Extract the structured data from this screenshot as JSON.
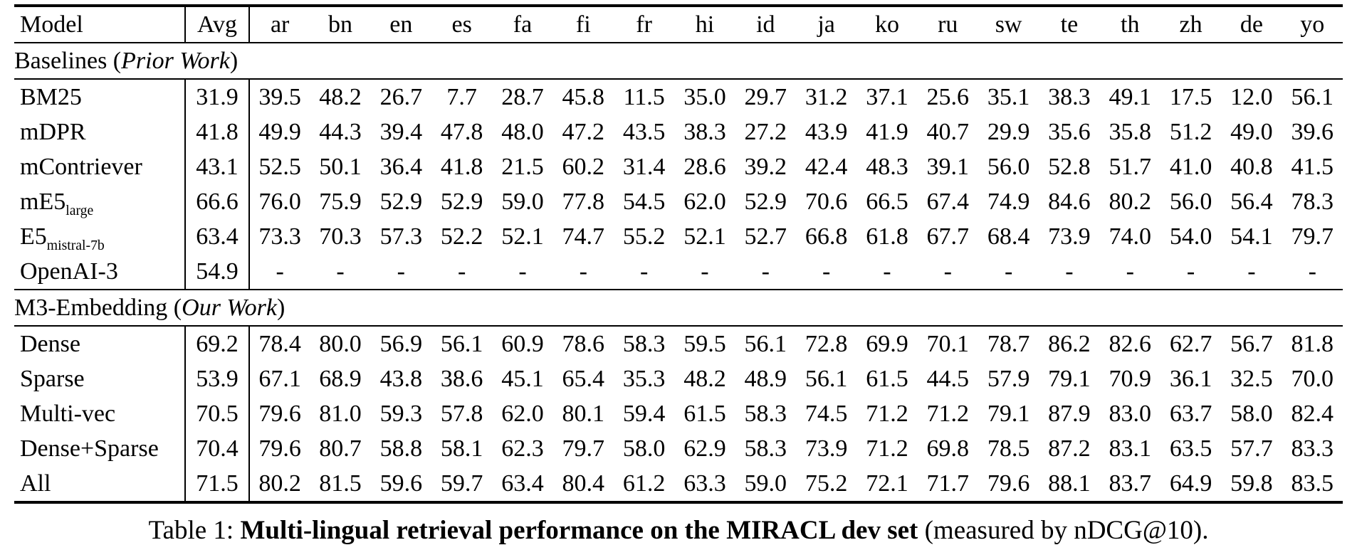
{
  "page": {
    "background_color": "#ffffff",
    "text_color": "#000000"
  },
  "table": {
    "columns": [
      "Model",
      "Avg",
      "ar",
      "bn",
      "en",
      "es",
      "fa",
      "fi",
      "fr",
      "hi",
      "id",
      "ja",
      "ko",
      "ru",
      "sw",
      "te",
      "th",
      "zh",
      "de",
      "yo"
    ],
    "sections": [
      {
        "label_prefix": "Baselines (",
        "label_italic": "Prior Work",
        "label_suffix": ")",
        "rows": [
          {
            "model": "BM25",
            "model_sub": "",
            "avg": "31.9",
            "bold": false,
            "values": [
              "39.5",
              "48.2",
              "26.7",
              "7.7",
              "28.7",
              "45.8",
              "11.5",
              "35.0",
              "29.7",
              "31.2",
              "37.1",
              "25.6",
              "35.1",
              "38.3",
              "49.1",
              "17.5",
              "12.0",
              "56.1"
            ]
          },
          {
            "model": "mDPR",
            "model_sub": "",
            "avg": "41.8",
            "bold": false,
            "values": [
              "49.9",
              "44.3",
              "39.4",
              "47.8",
              "48.0",
              "47.2",
              "43.5",
              "38.3",
              "27.2",
              "43.9",
              "41.9",
              "40.7",
              "29.9",
              "35.6",
              "35.8",
              "51.2",
              "49.0",
              "39.6"
            ]
          },
          {
            "model": "mContriever",
            "model_sub": "",
            "avg": "43.1",
            "bold": false,
            "values": [
              "52.5",
              "50.1",
              "36.4",
              "41.8",
              "21.5",
              "60.2",
              "31.4",
              "28.6",
              "39.2",
              "42.4",
              "48.3",
              "39.1",
              "56.0",
              "52.8",
              "51.7",
              "41.0",
              "40.8",
              "41.5"
            ]
          },
          {
            "model": "mE5",
            "model_sub": "large",
            "avg": "66.6",
            "bold": false,
            "values": [
              "76.0",
              "75.9",
              "52.9",
              "52.9",
              "59.0",
              "77.8",
              "54.5",
              "62.0",
              "52.9",
              "70.6",
              "66.5",
              "67.4",
              "74.9",
              "84.6",
              "80.2",
              "56.0",
              "56.4",
              "78.3"
            ]
          },
          {
            "model": "E5",
            "model_sub": "mistral-7b",
            "avg": "63.4",
            "bold": false,
            "values": [
              "73.3",
              "70.3",
              "57.3",
              "52.2",
              "52.1",
              "74.7",
              "55.2",
              "52.1",
              "52.7",
              "66.8",
              "61.8",
              "67.7",
              "68.4",
              "73.9",
              "74.0",
              "54.0",
              "54.1",
              "79.7"
            ]
          },
          {
            "model": "OpenAI-3",
            "model_sub": "",
            "avg": "54.9",
            "bold": false,
            "values": [
              "-",
              "-",
              "-",
              "-",
              "-",
              "-",
              "-",
              "-",
              "-",
              "-",
              "-",
              "-",
              "-",
              "-",
              "-",
              "-",
              "-",
              "-"
            ]
          }
        ]
      },
      {
        "label_prefix": "M3-Embedding (",
        "label_italic": "Our Work",
        "label_suffix": ")",
        "rows": [
          {
            "model": "Dense",
            "model_sub": "",
            "avg": "69.2",
            "bold": false,
            "values": [
              "78.4",
              "80.0",
              "56.9",
              "56.1",
              "60.9",
              "78.6",
              "58.3",
              "59.5",
              "56.1",
              "72.8",
              "69.9",
              "70.1",
              "78.7",
              "86.2",
              "82.6",
              "62.7",
              "56.7",
              "81.8"
            ]
          },
          {
            "model": "Sparse",
            "model_sub": "",
            "avg": "53.9",
            "bold": false,
            "values": [
              "67.1",
              "68.9",
              "43.8",
              "38.6",
              "45.1",
              "65.4",
              "35.3",
              "48.2",
              "48.9",
              "56.1",
              "61.5",
              "44.5",
              "57.9",
              "79.1",
              "70.9",
              "36.1",
              "32.5",
              "70.0"
            ]
          },
          {
            "model": "Multi-vec",
            "model_sub": "",
            "avg": "70.5",
            "bold": false,
            "values": [
              "79.6",
              "81.0",
              "59.3",
              "57.8",
              "62.0",
              "80.1",
              "59.4",
              "61.5",
              "58.3",
              "74.5",
              "71.2",
              "71.2",
              "79.1",
              "87.9",
              "83.0",
              "63.7",
              "58.0",
              "82.4"
            ]
          },
          {
            "model": "Dense+Sparse",
            "model_sub": "",
            "avg": "70.4",
            "bold": false,
            "values": [
              "79.6",
              "80.7",
              "58.8",
              "58.1",
              "62.3",
              "79.7",
              "58.0",
              "62.9",
              "58.3",
              "73.9",
              "71.2",
              "69.8",
              "78.5",
              "87.2",
              "83.1",
              "63.5",
              "57.7",
              "83.3"
            ]
          },
          {
            "model": "All",
            "model_sub": "",
            "avg": "71.5",
            "bold": true,
            "values": [
              "80.2",
              "81.5",
              "59.6",
              "59.7",
              "63.4",
              "80.4",
              "61.2",
              "63.3",
              "59.0",
              "75.2",
              "72.1",
              "71.7",
              "79.6",
              "88.1",
              "83.7",
              "64.9",
              "59.8",
              "83.5"
            ]
          }
        ]
      }
    ]
  },
  "caption": {
    "prefix": "Table 1: ",
    "bold": "Multi-lingual retrieval performance on the MIRACL dev set",
    "suffix": " (measured by nDCG@10)."
  }
}
